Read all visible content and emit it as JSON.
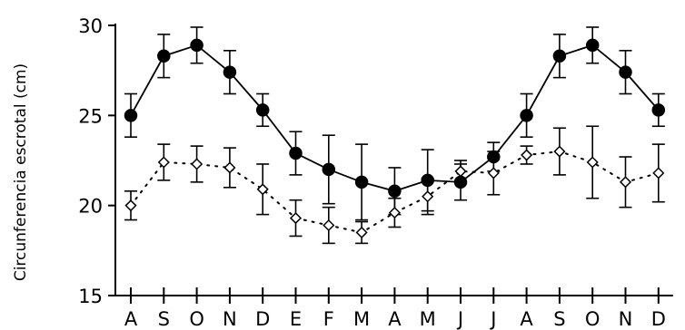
{
  "chart_data": {
    "type": "line",
    "ylabel": "Circunferencia escrotal (cm)",
    "xlabel": "",
    "ylim": [
      15,
      30
    ],
    "yticks": [
      15,
      20,
      25,
      30
    ],
    "categories": [
      "A",
      "S",
      "O",
      "N",
      "D",
      "E",
      "F",
      "M",
      "A",
      "M",
      "J",
      "J",
      "A",
      "S",
      "O",
      "N",
      "D"
    ],
    "grid": false,
    "series": [
      {
        "marker": "filled-circle",
        "linestyle": "solid",
        "values": [
          25.0,
          28.3,
          28.9,
          27.4,
          25.3,
          22.9,
          22.0,
          21.3,
          20.8,
          21.4,
          21.3,
          22.7,
          25.0,
          28.3,
          28.9,
          27.4,
          25.3
        ],
        "errors": [
          1.2,
          1.2,
          1.0,
          1.2,
          0.9,
          1.2,
          1.9,
          2.1,
          1.3,
          1.7,
          1.0,
          0.8,
          1.2,
          1.2,
          1.0,
          1.2,
          0.9
        ]
      },
      {
        "marker": "open-diamond",
        "linestyle": "dotted",
        "values": [
          20.0,
          22.4,
          22.3,
          22.1,
          20.9,
          19.3,
          18.9,
          18.5,
          19.6,
          20.5,
          21.9,
          21.8,
          22.8,
          23.0,
          22.4,
          21.3,
          21.8
        ],
        "errors": [
          0.8,
          1.0,
          1.0,
          1.1,
          1.4,
          1.0,
          1.0,
          0.6,
          0.8,
          1.0,
          0.6,
          1.2,
          0.5,
          1.3,
          2.0,
          1.4,
          1.6
        ]
      }
    ]
  }
}
